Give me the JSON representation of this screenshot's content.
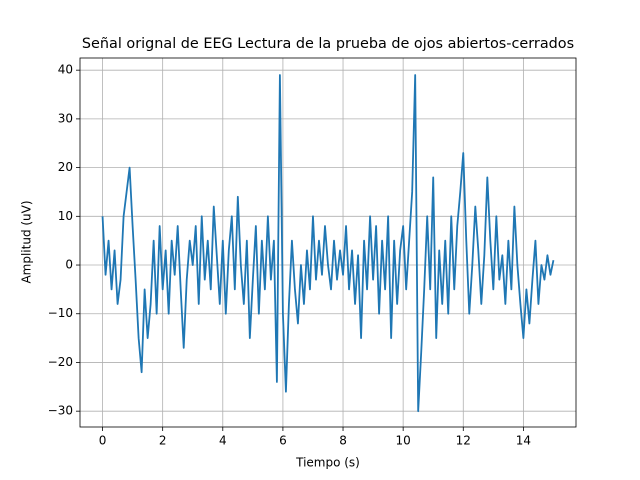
{
  "chart_data": {
    "type": "line",
    "title": "Señal orignal de EEG Lectura de la prueba de ojos abiertos-cerrados",
    "xlabel": "Tiempo (s)",
    "ylabel": "Amplitud (uV)",
    "xlim": [
      -0.75,
      15.75
    ],
    "xticks": [
      0,
      2,
      4,
      6,
      8,
      10,
      12,
      14
    ],
    "ylim": [
      -33.25,
      42.5
    ],
    "yticks": [
      {
        "value": -30,
        "label": "−30"
      },
      {
        "value": -20,
        "label": "−20"
      },
      {
        "value": -10,
        "label": "−10"
      },
      0,
      10,
      20,
      30,
      40
    ],
    "grid": true,
    "x": [
      0.0,
      0.1,
      0.2,
      0.3,
      0.4,
      0.5,
      0.6,
      0.7,
      0.8,
      0.9,
      1.0,
      1.1,
      1.2,
      1.3,
      1.4,
      1.5,
      1.6,
      1.7,
      1.8,
      1.9,
      2.0,
      2.1,
      2.2,
      2.3,
      2.4,
      2.5,
      2.6,
      2.7,
      2.8,
      2.9,
      3.0,
      3.1,
      3.2,
      3.3,
      3.4,
      3.5,
      3.6,
      3.7,
      3.8,
      3.9,
      4.0,
      4.1,
      4.2,
      4.3,
      4.4,
      4.5,
      4.6,
      4.7,
      4.8,
      4.9,
      5.0,
      5.1,
      5.2,
      5.3,
      5.4,
      5.5,
      5.6,
      5.7,
      5.8,
      5.9,
      6.0,
      6.1,
      6.2,
      6.3,
      6.4,
      6.5,
      6.6,
      6.7,
      6.8,
      6.9,
      7.0,
      7.1,
      7.2,
      7.3,
      7.4,
      7.5,
      7.6,
      7.7,
      7.8,
      7.9,
      8.0,
      8.1,
      8.2,
      8.3,
      8.4,
      8.5,
      8.6,
      8.7,
      8.8,
      8.9,
      9.0,
      9.1,
      9.2,
      9.3,
      9.4,
      9.5,
      9.6,
      9.7,
      9.8,
      9.9,
      10.0,
      10.1,
      10.2,
      10.3,
      10.4,
      10.5,
      10.6,
      10.7,
      10.8,
      10.9,
      11.0,
      11.1,
      11.2,
      11.3,
      11.4,
      11.5,
      11.6,
      11.7,
      11.8,
      11.9,
      12.0,
      12.1,
      12.2,
      12.3,
      12.4,
      12.5,
      12.6,
      12.7,
      12.8,
      12.9,
      13.0,
      13.1,
      13.2,
      13.3,
      13.4,
      13.5,
      13.6,
      13.7,
      13.8,
      13.9,
      14.0,
      14.1,
      14.2,
      14.3,
      14.4,
      14.5,
      14.6,
      14.7,
      14.8,
      14.9,
      15.0
    ],
    "series": [
      {
        "color": "#1f77b4",
        "values": [
          10,
          -2,
          5,
          -5,
          3,
          -8,
          -3,
          10,
          15,
          20,
          8,
          -3,
          -15,
          -22,
          -5,
          -15,
          -8,
          5,
          -10,
          8,
          -5,
          3,
          -10,
          5,
          -2,
          8,
          -5,
          -17,
          -3,
          5,
          0,
          8,
          -8,
          10,
          -3,
          5,
          -5,
          12,
          2,
          -8,
          5,
          -10,
          3,
          10,
          -5,
          14,
          0,
          -8,
          5,
          -15,
          -3,
          8,
          -10,
          5,
          -5,
          10,
          -3,
          5,
          -24,
          39,
          -10,
          -26,
          -8,
          5,
          -5,
          -12,
          0,
          -8,
          3,
          -5,
          10,
          -3,
          5,
          -2,
          8,
          0,
          -5,
          5,
          -3,
          3,
          -2,
          8,
          -5,
          3,
          -8,
          2,
          -15,
          5,
          -5,
          10,
          -3,
          8,
          -10,
          5,
          -5,
          10,
          -15,
          5,
          -8,
          3,
          8,
          -5,
          5,
          15,
          39,
          -30,
          -18,
          -5,
          10,
          -5,
          18,
          -15,
          3,
          -8,
          5,
          -10,
          10,
          -5,
          8,
          15,
          23,
          5,
          -10,
          0,
          12,
          3,
          -8,
          2,
          18,
          5,
          -5,
          10,
          -3,
          2,
          -8,
          5,
          -5,
          12,
          0,
          -8,
          -15,
          -5,
          -12,
          -3,
          5,
          -8,
          0,
          -3,
          2,
          -2,
          1
        ]
      }
    ]
  }
}
